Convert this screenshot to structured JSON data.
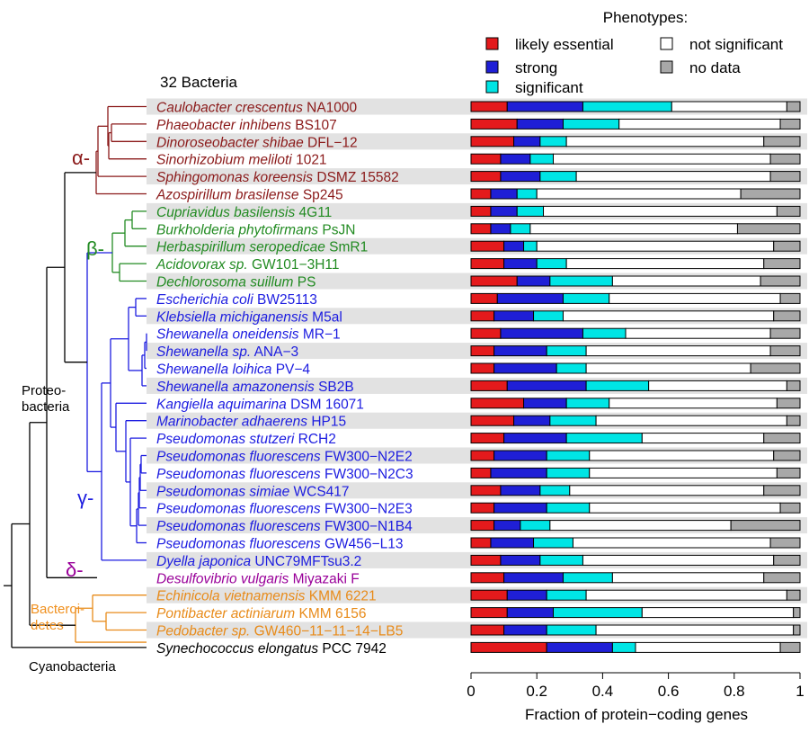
{
  "chart_data": {
    "type": "bar",
    "subtype": "stacked-horizontal",
    "title": "32 Bacteria",
    "xlabel": "Fraction of protein−coding genes",
    "ylabel": "",
    "xlim": [
      0,
      1
    ],
    "xticks": [
      "0",
      "0.2",
      "0.4",
      "0.6",
      "0.8",
      "1"
    ],
    "legend": {
      "title": "Phenotypes:",
      "placement": "top-right",
      "items": [
        {
          "label": "likely essential",
          "color": "#e41a1c"
        },
        {
          "label": "strong",
          "color": "#1f1fd6"
        },
        {
          "label": "significant",
          "color": "#00e5e5"
        },
        {
          "label": "not significant",
          "color": "#ffffff"
        },
        {
          "label": "no data",
          "color": "#a8a8a8"
        }
      ]
    },
    "series_names": [
      "likely essential",
      "strong",
      "significant",
      "not significant",
      "no data"
    ],
    "series_colors": [
      "#e41a1c",
      "#1f1fd6",
      "#00e5e5",
      "#ffffff",
      "#a8a8a8"
    ],
    "categories": [
      {
        "genus": "Caulobacter crescentus",
        "strain": "NA1000",
        "group": "alpha",
        "values": [
          0.11,
          0.23,
          0.27,
          0.35,
          0.04
        ]
      },
      {
        "genus": "Phaeobacter inhibens",
        "strain": "BS107",
        "group": "alpha",
        "values": [
          0.14,
          0.14,
          0.17,
          0.49,
          0.06
        ]
      },
      {
        "genus": "Dinoroseobacter shibae",
        "strain": "DFL−12",
        "group": "alpha",
        "values": [
          0.13,
          0.08,
          0.08,
          0.6,
          0.11
        ]
      },
      {
        "genus": "Sinorhizobium meliloti",
        "strain": "1021",
        "group": "alpha",
        "values": [
          0.09,
          0.09,
          0.07,
          0.66,
          0.09
        ]
      },
      {
        "genus": "Sphingomonas koreensis",
        "strain": "DSMZ 15582",
        "group": "alpha",
        "values": [
          0.09,
          0.12,
          0.11,
          0.59,
          0.09
        ]
      },
      {
        "genus": "Azospirillum brasilense",
        "strain": "Sp245",
        "group": "alpha",
        "values": [
          0.06,
          0.08,
          0.06,
          0.62,
          0.18
        ]
      },
      {
        "genus": "Cupriavidus basilensis",
        "strain": "4G11",
        "group": "beta",
        "values": [
          0.06,
          0.08,
          0.08,
          0.71,
          0.07
        ]
      },
      {
        "genus": "Burkholderia phytofirmans",
        "strain": "PsJN",
        "group": "beta",
        "values": [
          0.06,
          0.06,
          0.06,
          0.63,
          0.19
        ]
      },
      {
        "genus": "Herbaspirillum seropedicae",
        "strain": "SmR1",
        "group": "beta",
        "values": [
          0.1,
          0.06,
          0.04,
          0.72,
          0.08
        ]
      },
      {
        "genus": "Acidovorax sp.",
        "strain": "GW101−3H11",
        "group": "beta",
        "values": [
          0.1,
          0.1,
          0.09,
          0.6,
          0.11
        ]
      },
      {
        "genus": "Dechlorosoma suillum",
        "strain": "PS",
        "group": "beta",
        "values": [
          0.14,
          0.1,
          0.19,
          0.45,
          0.12
        ]
      },
      {
        "genus": "Escherichia coli",
        "strain": "BW25113",
        "group": "gamma",
        "values": [
          0.08,
          0.2,
          0.14,
          0.52,
          0.06
        ]
      },
      {
        "genus": "Klebsiella michiganensis",
        "strain": "M5al",
        "group": "gamma",
        "values": [
          0.07,
          0.12,
          0.09,
          0.64,
          0.08
        ]
      },
      {
        "genus": "Shewanella oneidensis",
        "strain": "MR−1",
        "group": "gamma",
        "values": [
          0.09,
          0.25,
          0.13,
          0.44,
          0.09
        ]
      },
      {
        "genus": "Shewanella sp.",
        "strain": "ANA−3",
        "group": "gamma",
        "values": [
          0.07,
          0.16,
          0.12,
          0.56,
          0.09
        ]
      },
      {
        "genus": "Shewanella loihica",
        "strain": "PV−4",
        "group": "gamma",
        "values": [
          0.07,
          0.19,
          0.09,
          0.5,
          0.15
        ]
      },
      {
        "genus": "Shewanella amazonensis",
        "strain": "SB2B",
        "group": "gamma",
        "values": [
          0.11,
          0.24,
          0.19,
          0.42,
          0.04
        ]
      },
      {
        "genus": "Kangiella aquimarina",
        "strain": "DSM 16071",
        "group": "gamma",
        "values": [
          0.16,
          0.13,
          0.13,
          0.51,
          0.07
        ]
      },
      {
        "genus": "Marinobacter adhaerens",
        "strain": "HP15",
        "group": "gamma",
        "values": [
          0.13,
          0.11,
          0.14,
          0.58,
          0.04
        ]
      },
      {
        "genus": "Pseudomonas stutzeri",
        "strain": "RCH2",
        "group": "gamma",
        "values": [
          0.1,
          0.19,
          0.23,
          0.37,
          0.11
        ]
      },
      {
        "genus": "Pseudomonas fluorescens",
        "strain": "FW300−N2E2",
        "group": "gamma",
        "values": [
          0.07,
          0.16,
          0.13,
          0.56,
          0.08
        ]
      },
      {
        "genus": "Pseudomonas fluorescens",
        "strain": "FW300−N2C3",
        "group": "gamma",
        "values": [
          0.06,
          0.17,
          0.13,
          0.57,
          0.07
        ]
      },
      {
        "genus": "Pseudomonas simiae",
        "strain": "WCS417",
        "group": "gamma",
        "values": [
          0.09,
          0.12,
          0.09,
          0.59,
          0.11
        ]
      },
      {
        "genus": "Pseudomonas fluorescens",
        "strain": "FW300−N2E3",
        "group": "gamma",
        "values": [
          0.07,
          0.16,
          0.13,
          0.58,
          0.06
        ]
      },
      {
        "genus": "Pseudomonas fluorescens",
        "strain": "FW300−N1B4",
        "group": "gamma",
        "values": [
          0.07,
          0.08,
          0.09,
          0.55,
          0.21
        ]
      },
      {
        "genus": "Pseudomonas fluorescens",
        "strain": "GW456−L13",
        "group": "gamma",
        "values": [
          0.06,
          0.13,
          0.12,
          0.6,
          0.09
        ]
      },
      {
        "genus": "Dyella japonica",
        "strain": "UNC79MFTsu3.2",
        "group": "gamma",
        "values": [
          0.09,
          0.12,
          0.13,
          0.58,
          0.08
        ]
      },
      {
        "genus": "Desulfovibrio vulgaris",
        "strain": "Miyazaki F",
        "group": "delta",
        "values": [
          0.1,
          0.18,
          0.15,
          0.46,
          0.11
        ]
      },
      {
        "genus": "Echinicola vietnamensis",
        "strain": "KMM 6221",
        "group": "bacteroidetes",
        "values": [
          0.11,
          0.12,
          0.12,
          0.61,
          0.04
        ]
      },
      {
        "genus": "Pontibacter actiniarum",
        "strain": "KMM 6156",
        "group": "bacteroidetes",
        "values": [
          0.11,
          0.14,
          0.27,
          0.46,
          0.02
        ]
      },
      {
        "genus": "Pedobacter sp.",
        "strain": "GW460−11−11−14−LB5",
        "group": "bacteroidetes",
        "values": [
          0.1,
          0.13,
          0.15,
          0.6,
          0.02
        ]
      },
      {
        "genus": "Synechococcus elongatus",
        "strain": "PCC 7942",
        "group": "cyanobacteria",
        "values": [
          0.23,
          0.2,
          0.07,
          0.44,
          0.06
        ]
      }
    ]
  },
  "tree": {
    "clade_labels": [
      {
        "id": "alpha",
        "text": "α-",
        "color": "#8b1a1a"
      },
      {
        "id": "beta",
        "text": "β-",
        "color": "#228b22"
      },
      {
        "id": "gamma",
        "text": "γ-",
        "color": "#1c1ce0"
      },
      {
        "id": "delta",
        "text": "δ-",
        "color": "#990099"
      },
      {
        "id": "bacteroidetes",
        "text": "Bacteroi-\ndetes",
        "color": "#f0901e"
      },
      {
        "id": "proteobacteria",
        "text": "Proteo-\nbacteria",
        "color": "#000000"
      },
      {
        "id": "cyanobacteria",
        "text": "Cyanobacteria",
        "color": "#000000"
      }
    ],
    "group_colors": {
      "alpha": "#8b1a1a",
      "beta": "#228b22",
      "gamma": "#1c1ce0",
      "delta": "#990099",
      "bacteroidetes": "#e88b1a",
      "cyanobacteria": "#000000"
    }
  }
}
